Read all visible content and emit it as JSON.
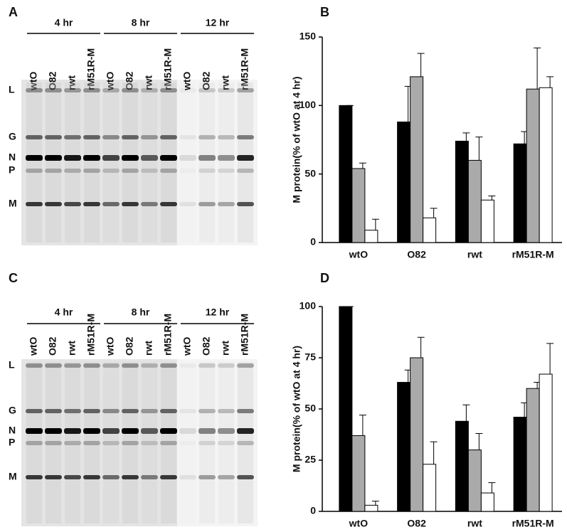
{
  "panel_labels": [
    "A",
    "B",
    "C",
    "D"
  ],
  "gels": [
    {
      "time_points": [
        "4 hr",
        "8 hr",
        "12 hr"
      ],
      "lanes": [
        "wtO",
        "O82",
        "rwt",
        "rM51R-M"
      ],
      "bands": [
        "L",
        "G",
        "N",
        "P",
        "M"
      ]
    },
    {
      "time_points": [
        "4 hr",
        "8 hr",
        "12 hr"
      ],
      "lanes": [
        "wtO",
        "O82",
        "rwt",
        "rM51R-M"
      ],
      "bands": [
        "L",
        "G",
        "N",
        "P",
        "M"
      ]
    }
  ],
  "chart_data": [
    {
      "type": "bar",
      "y_label": "M protein(% of wtO at 4 hr)",
      "categories": [
        "wtO",
        "O82",
        "rwt",
        "rM51R-M"
      ],
      "series": [
        {
          "color": "#000000",
          "values": [
            100,
            88,
            74,
            72
          ],
          "errors": [
            0,
            26,
            6,
            9
          ]
        },
        {
          "color": "#aaaaaa",
          "values": [
            54,
            121,
            60,
            112
          ],
          "errors": [
            4,
            17,
            17,
            30
          ]
        },
        {
          "color": "#ffffff",
          "values": [
            9,
            18,
            31,
            113
          ],
          "errors": [
            8,
            7,
            3,
            8
          ]
        }
      ],
      "ylim": [
        0,
        150
      ],
      "yticks": [
        0,
        50,
        100,
        150
      ]
    },
    {
      "type": "bar",
      "y_label": "M protein(% of wtO at 4 hr)",
      "categories": [
        "wtO",
        "O82",
        "rwt",
        "rM51R-M"
      ],
      "series": [
        {
          "color": "#000000",
          "values": [
            100,
            63,
            44,
            46
          ],
          "errors": [
            0,
            6,
            8,
            7
          ]
        },
        {
          "color": "#aaaaaa",
          "values": [
            37,
            75,
            30,
            60
          ],
          "errors": [
            10,
            10,
            8,
            3
          ]
        },
        {
          "color": "#ffffff",
          "values": [
            3,
            23,
            9,
            67
          ],
          "errors": [
            2,
            11,
            5,
            15
          ]
        }
      ],
      "ylim": [
        0,
        100
      ],
      "yticks": [
        0,
        25,
        50,
        75,
        100
      ]
    }
  ]
}
